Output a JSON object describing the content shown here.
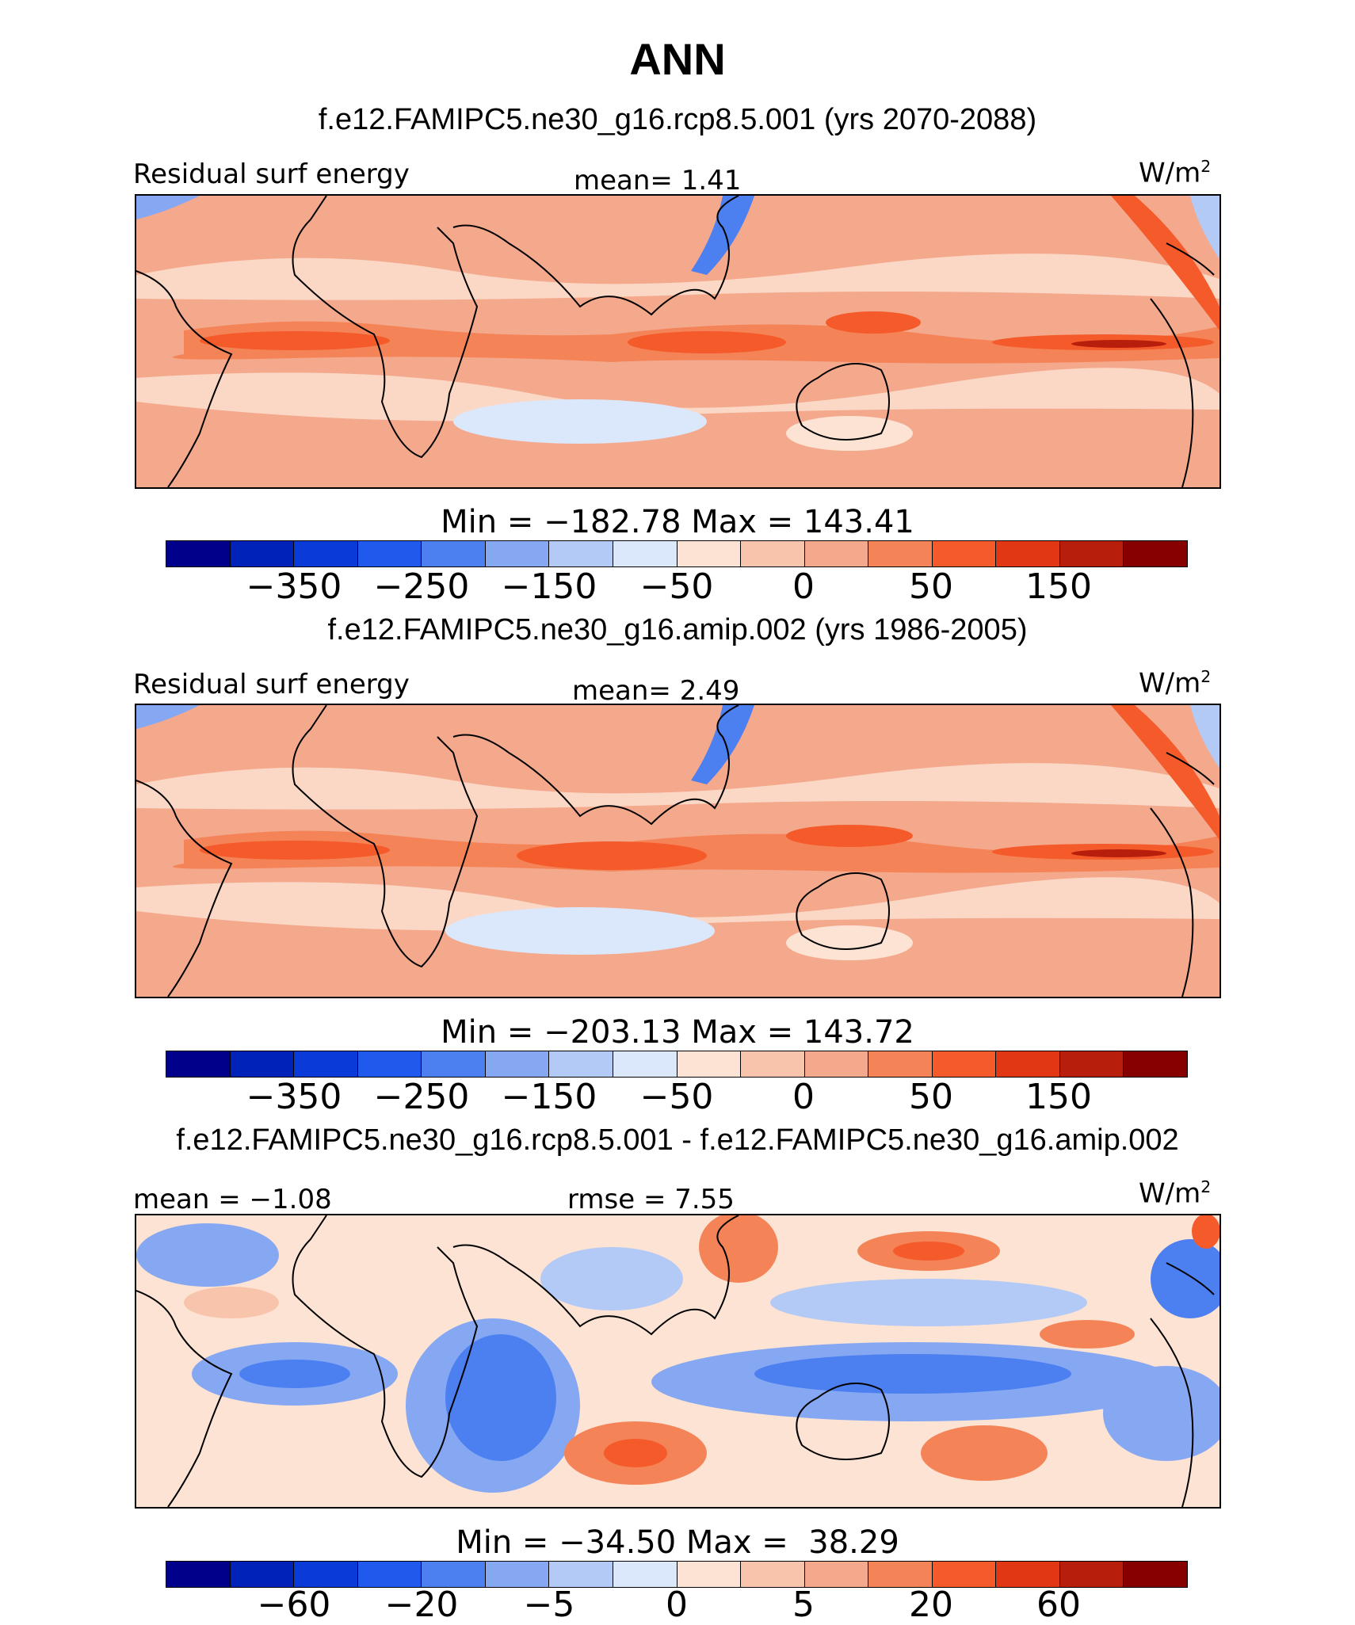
{
  "title": "ANN",
  "panels": [
    {
      "title": "f.e12.FAMIPC5.ne30_g16.rcp8.5.001 (yrs 2070-2088)",
      "left_label": "Residual surf energy",
      "center_label": "mean=   1.41",
      "units": "W/m",
      "units_sup": "2",
      "minmax": "Min = −182.78 Max = 143.41",
      "tick_labels": [
        "−350",
        "−250",
        "−150",
        "−50",
        "0",
        "50",
        "150"
      ]
    },
    {
      "title": "f.e12.FAMIPC5.ne30_g16.amip.002 (yrs 1986-2005)",
      "left_label": "Residual surf energy",
      "center_label": "mean=   2.49",
      "units": "W/m",
      "units_sup": "2",
      "minmax": "Min = −203.13 Max = 143.72",
      "tick_labels": [
        "−350",
        "−250",
        "−150",
        "−50",
        "0",
        "50",
        "150"
      ]
    },
    {
      "title": "f.e12.FAMIPC5.ne30_g16.rcp8.5.001 - f.e12.FAMIPC5.ne30_g16.amip.002",
      "left_label": "mean =  −1.08",
      "center_label": "rmse =   7.55",
      "units": "W/m",
      "units_sup": "2",
      "minmax": "Min = −34.50 Max =  38.29",
      "tick_labels": [
        "−60",
        "−20",
        "−5",
        "0",
        "5",
        "20",
        "60"
      ]
    }
  ],
  "colors": {
    "scale": [
      "#00008b",
      "#0022b8",
      "#0a3ad8",
      "#1f5aed",
      "#4c7ff0",
      "#86a8f3",
      "#b3c9f6",
      "#dbe7fb",
      "#fde3d3",
      "#f9c4ac",
      "#f4a98d",
      "#f48458",
      "#f45a2a",
      "#e13714",
      "#b81e0c",
      "#870000"
    ]
  }
}
